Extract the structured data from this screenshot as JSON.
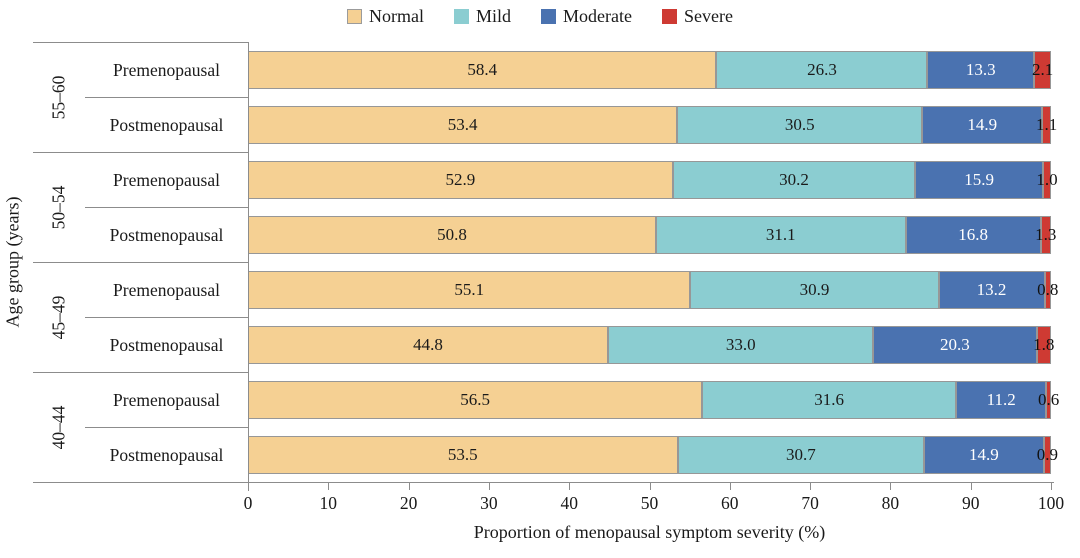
{
  "chart_data": {
    "type": "bar",
    "subtype": "horizontal-stacked-percentage",
    "title": "",
    "xlabel": "Proportion of menopausal symptom severity (%)",
    "ylabel": "Age group (years)",
    "xlim": [
      0,
      100
    ],
    "xticks": [
      "0",
      "10",
      "20",
      "30",
      "40",
      "50",
      "60",
      "70",
      "80",
      "90",
      "100"
    ],
    "grid": false,
    "legend_position": "top",
    "legend": [
      {
        "label": "Normal",
        "color": "#f5d093",
        "swatch_border": "#9b9b9b"
      },
      {
        "label": "Mild",
        "color": "#8bcdd1",
        "swatch_border": "#8bcdd1"
      },
      {
        "label": "Moderate",
        "color": "#4a72b0",
        "swatch_border": "#4a72b0"
      },
      {
        "label": "Severe",
        "color": "#ce3a33",
        "swatch_border": "#ce3a33"
      }
    ],
    "value_label_colors": [
      "#1a1a1a",
      "#1a1a1a",
      "#ffffff",
      "#111111"
    ],
    "segment_border_color": "#979797",
    "axis_line_color": "#8c8c8c",
    "groups": [
      {
        "age": "55–60",
        "rows": [
          {
            "label": "Premenopausal",
            "values": [
              "58.4",
              "26.3",
              "13.3",
              "2.1"
            ]
          },
          {
            "label": "Postmenopausal",
            "values": [
              "53.4",
              "30.5",
              "14.9",
              "1.1"
            ]
          }
        ]
      },
      {
        "age": "50–54",
        "rows": [
          {
            "label": "Premenopausal",
            "values": [
              "52.9",
              "30.2",
              "15.9",
              "1.0"
            ]
          },
          {
            "label": "Postmenopausal",
            "values": [
              "50.8",
              "31.1",
              "16.8",
              "1.3"
            ]
          }
        ]
      },
      {
        "age": "45–49",
        "rows": [
          {
            "label": "Premenopausal",
            "values": [
              "55.1",
              "30.9",
              "13.2",
              "0.8"
            ]
          },
          {
            "label": "Postmenopausal",
            "values": [
              "44.8",
              "33.0",
              "20.3",
              "1.8"
            ]
          }
        ]
      },
      {
        "age": "40–44",
        "rows": [
          {
            "label": "Premenopausal",
            "values": [
              "56.5",
              "31.6",
              "11.2",
              "0.6"
            ]
          },
          {
            "label": "Postmenopausal",
            "values": [
              "53.5",
              "30.7",
              "14.9",
              "0.9"
            ]
          }
        ]
      }
    ]
  }
}
